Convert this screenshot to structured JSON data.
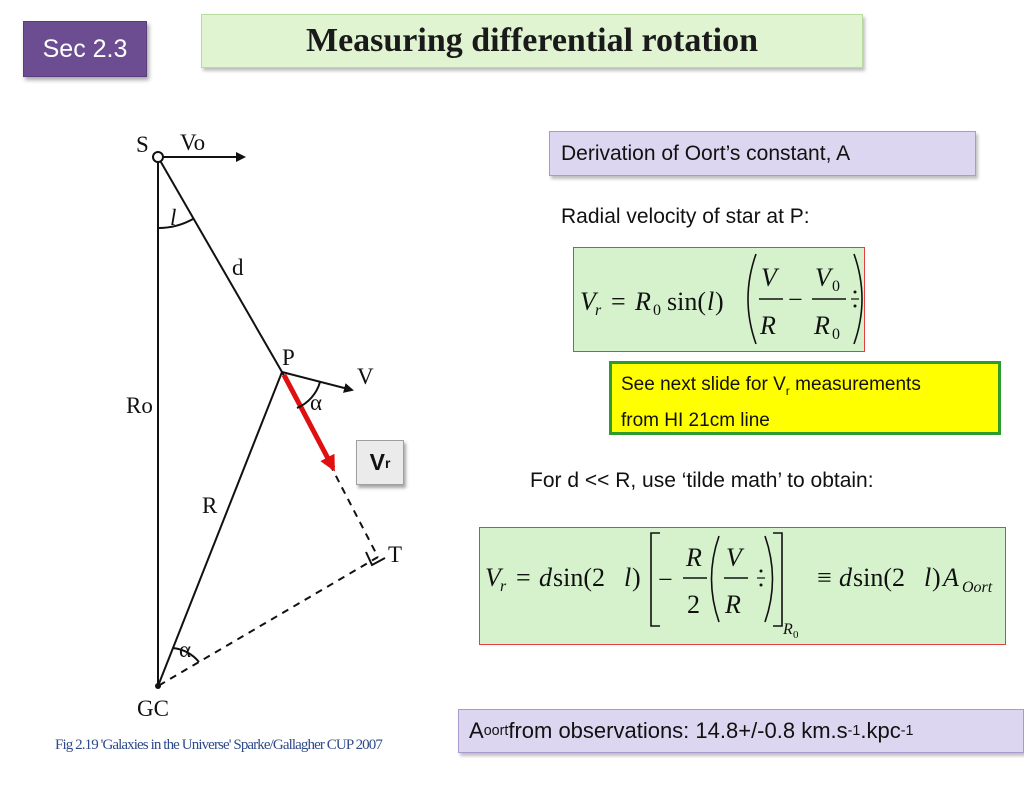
{
  "header": {
    "section_label": "Sec 2.3",
    "title": "Measuring differential rotation"
  },
  "derivation": {
    "heading": "Derivation of Oort’s constant, A",
    "radial_velocity_label": "Radial velocity of star at P:",
    "approx_label": "For d << R, use ‘tilde math’ to obtain:"
  },
  "note": {
    "line1_prefix": "See next slide for V",
    "line1_sub": "r",
    "line1_suffix": " measurements",
    "line2": "from HI 21cm line"
  },
  "vr_badge": {
    "main": "V",
    "sub": "r"
  },
  "result": {
    "prefix": "A",
    "prefix_sub": "oort",
    "text": " from observations: 14.8+/-0.8 km.s",
    "exp1": "-1",
    "mid": ".kpc",
    "exp2": "-1"
  },
  "caption": "Fig 2.19 'Galaxies in the Universe' Sparke/Gallagher CUP 2007",
  "diagram_labels": {
    "S": "S",
    "V0": "Vo",
    "l": "l",
    "d": "d",
    "P": "P",
    "V": "V",
    "alpha_top": "α",
    "R0": "Ro",
    "R": "R",
    "T": "T",
    "alpha_bottom": "α",
    "GC": "GC"
  },
  "equation1": {
    "lhs_V": "V",
    "lhs_sub": "r",
    "eq": "=",
    "R": "R",
    "R_sub": "0",
    "sin": "sin(",
    "l": "l",
    "close": ")",
    "num1": "V",
    "den1": "R",
    "minus": "−",
    "num2": "V",
    "num2_sub": "0",
    "den2": "R",
    "den2_sub": "0"
  },
  "equation2": {
    "lhs_V": "V",
    "lhs_sub": "r",
    "eq": "=",
    "d": "d",
    "sin": "sin(2",
    "l": "l",
    "close": ")",
    "minus": "−",
    "frac_num": "R",
    "frac_den": "2",
    "inner_num": "V",
    "inner_den": "R",
    "eval_sub": "R",
    "eval_sub2": "0",
    "equiv": "≡",
    "rhs_d": "d",
    "rhs_sin": "sin(2",
    "rhs_l": "l",
    "rhs_close": ")",
    "rhs_A": "A",
    "rhs_sub": "Oort"
  },
  "colors": {
    "badge_purple": "#6d4d91",
    "title_green": "#e0f4d2",
    "lavender": "#ddd6f0",
    "equation_green": "#d6f2cc",
    "equation_border": "#e04040",
    "note_yellow": "#ffff00",
    "note_border": "#2e9b2e",
    "vr_arrow_red": "#e01010",
    "caption_blue": "#2e4a8a"
  }
}
